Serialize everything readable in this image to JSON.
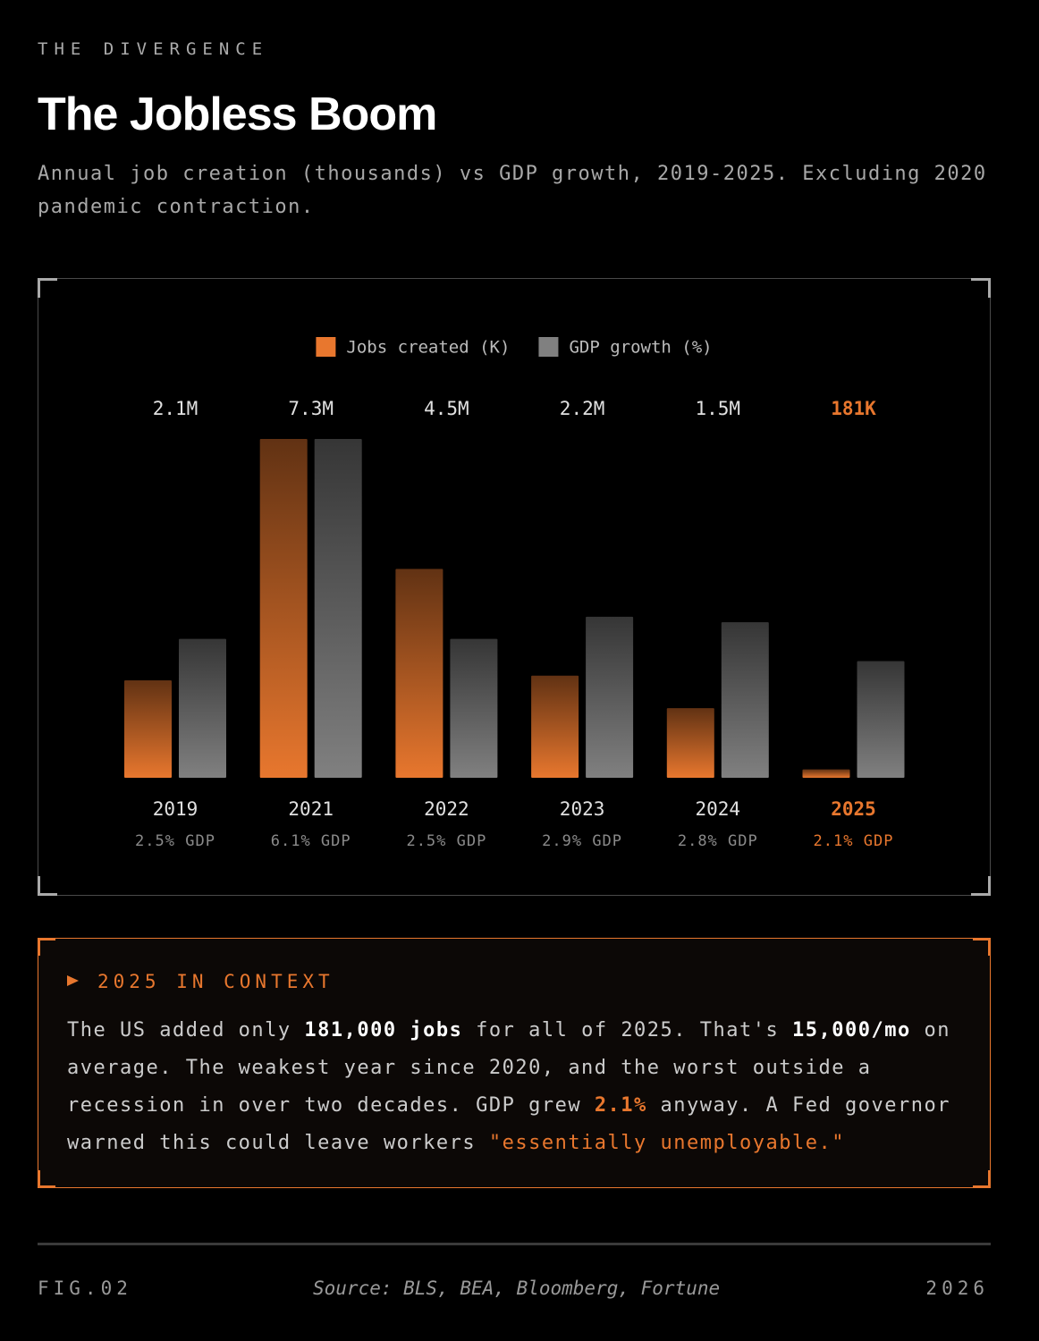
{
  "header": {
    "eyebrow": "THE DIVERGENCE",
    "title": "The Jobless Boom",
    "subtitle": "Annual job creation (thousands) vs GDP growth, 2019-2025. Excluding 2020 pandemic contraction."
  },
  "chart_data": {
    "type": "bar",
    "categories": [
      "2019",
      "2021",
      "2022",
      "2023",
      "2024",
      "2025"
    ],
    "series": [
      {
        "name": "Jobs created (K)",
        "color": "#e8772e",
        "values": [
          2100,
          7300,
          4500,
          2200,
          1500,
          181
        ],
        "value_labels": [
          "2.1M",
          "7.3M",
          "4.5M",
          "2.2M",
          "1.5M",
          "181K"
        ]
      },
      {
        "name": "GDP growth (%)",
        "color": "#808080",
        "axis": "y2",
        "values": [
          2.5,
          6.1,
          2.5,
          2.9,
          2.8,
          2.1
        ],
        "value_labels": [
          "2.5% GDP",
          "6.1% GDP",
          "2.5% GDP",
          "2.9% GDP",
          "2.8% GDP",
          "2.1% GDP"
        ]
      }
    ],
    "ylim": [
      0,
      7300
    ],
    "y2lim": [
      0,
      6.1
    ],
    "grid": false,
    "legend": "top",
    "highlight_index": 5
  },
  "context": {
    "heading": "2025 IN CONTEXT",
    "body": [
      "The US added only ",
      "181,000 jobs",
      " for all of 2025. That's ",
      "15,000/mo",
      " on average. The weakest year since 2020, and the worst outside a recession in over two decades. GDP grew ",
      "2.1%",
      " anyway. A Fed governor warned this could leave workers ",
      "\"essentially unemployable.\""
    ]
  },
  "footer": {
    "figure": "FIG.02",
    "source": "Source: BLS, BEA, Bloomberg, Fortune",
    "year": "2026"
  }
}
